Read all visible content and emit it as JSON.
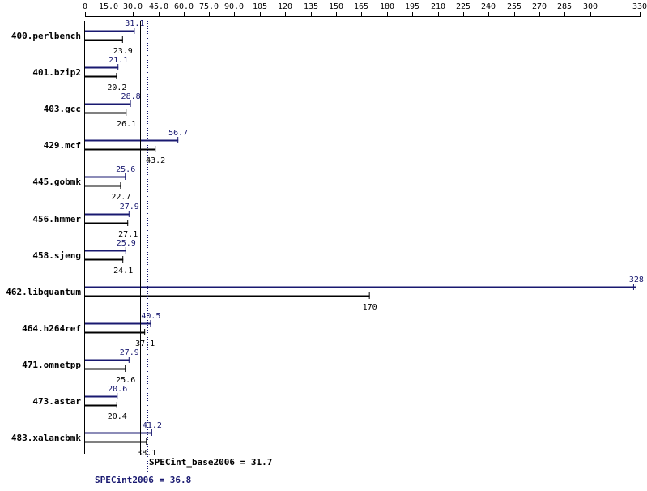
{
  "chart_data": {
    "type": "bar",
    "x_ticks": [
      "0",
      "15.0",
      "30.0",
      "45.0",
      "60.0",
      "75.0",
      "90.0",
      "105",
      "120",
      "135",
      "150",
      "165",
      "180",
      "195",
      "210",
      "225",
      "240",
      "255",
      "270",
      "285",
      "300",
      "330"
    ],
    "x_tick_values": [
      0,
      15,
      30,
      45,
      60,
      75,
      90,
      105,
      120,
      135,
      150,
      165,
      180,
      195,
      210,
      225,
      240,
      255,
      270,
      285,
      300,
      330
    ],
    "xlim": [
      0,
      330
    ],
    "categories": [
      "400.perlbench",
      "401.bzip2",
      "403.gcc",
      "429.mcf",
      "445.gobmk",
      "456.hmmer",
      "458.sjeng",
      "462.libquantum",
      "464.h264ref",
      "471.omnetpp",
      "473.astar",
      "483.xalancbmk"
    ],
    "series": [
      {
        "values": [
          31.1,
          21.1,
          28.8,
          56.7,
          25.6,
          27.9,
          25.9,
          328,
          40.5,
          27.9,
          20.6,
          41.2
        ],
        "labels": [
          "31.1",
          "21.1",
          "28.8",
          "56.7",
          "25.6",
          "27.9",
          "25.9",
          "328",
          "40.5",
          "27.9",
          "20.6",
          "41.2"
        ],
        "color": "#191970"
      },
      {
        "values": [
          23.9,
          20.2,
          26.1,
          43.2,
          22.7,
          27.1,
          24.1,
          170,
          37.1,
          25.6,
          20.4,
          38.1
        ],
        "labels": [
          "23.9",
          "20.2",
          "26.1",
          "43.2",
          "22.7",
          "27.1",
          "24.1",
          "170",
          "37.1",
          "25.6",
          "20.4",
          "38.1"
        ],
        "color": "#000000"
      }
    ],
    "reference_lines": [
      {
        "label": "SPECint_base2006 = 31.7",
        "value": 31.7,
        "color": "#000000",
        "style": "solid"
      },
      {
        "label": "SPECint2006 = 36.8",
        "value": 36.8,
        "color": "#191970",
        "style": "dotted"
      }
    ],
    "grid": false,
    "legend": "none"
  }
}
